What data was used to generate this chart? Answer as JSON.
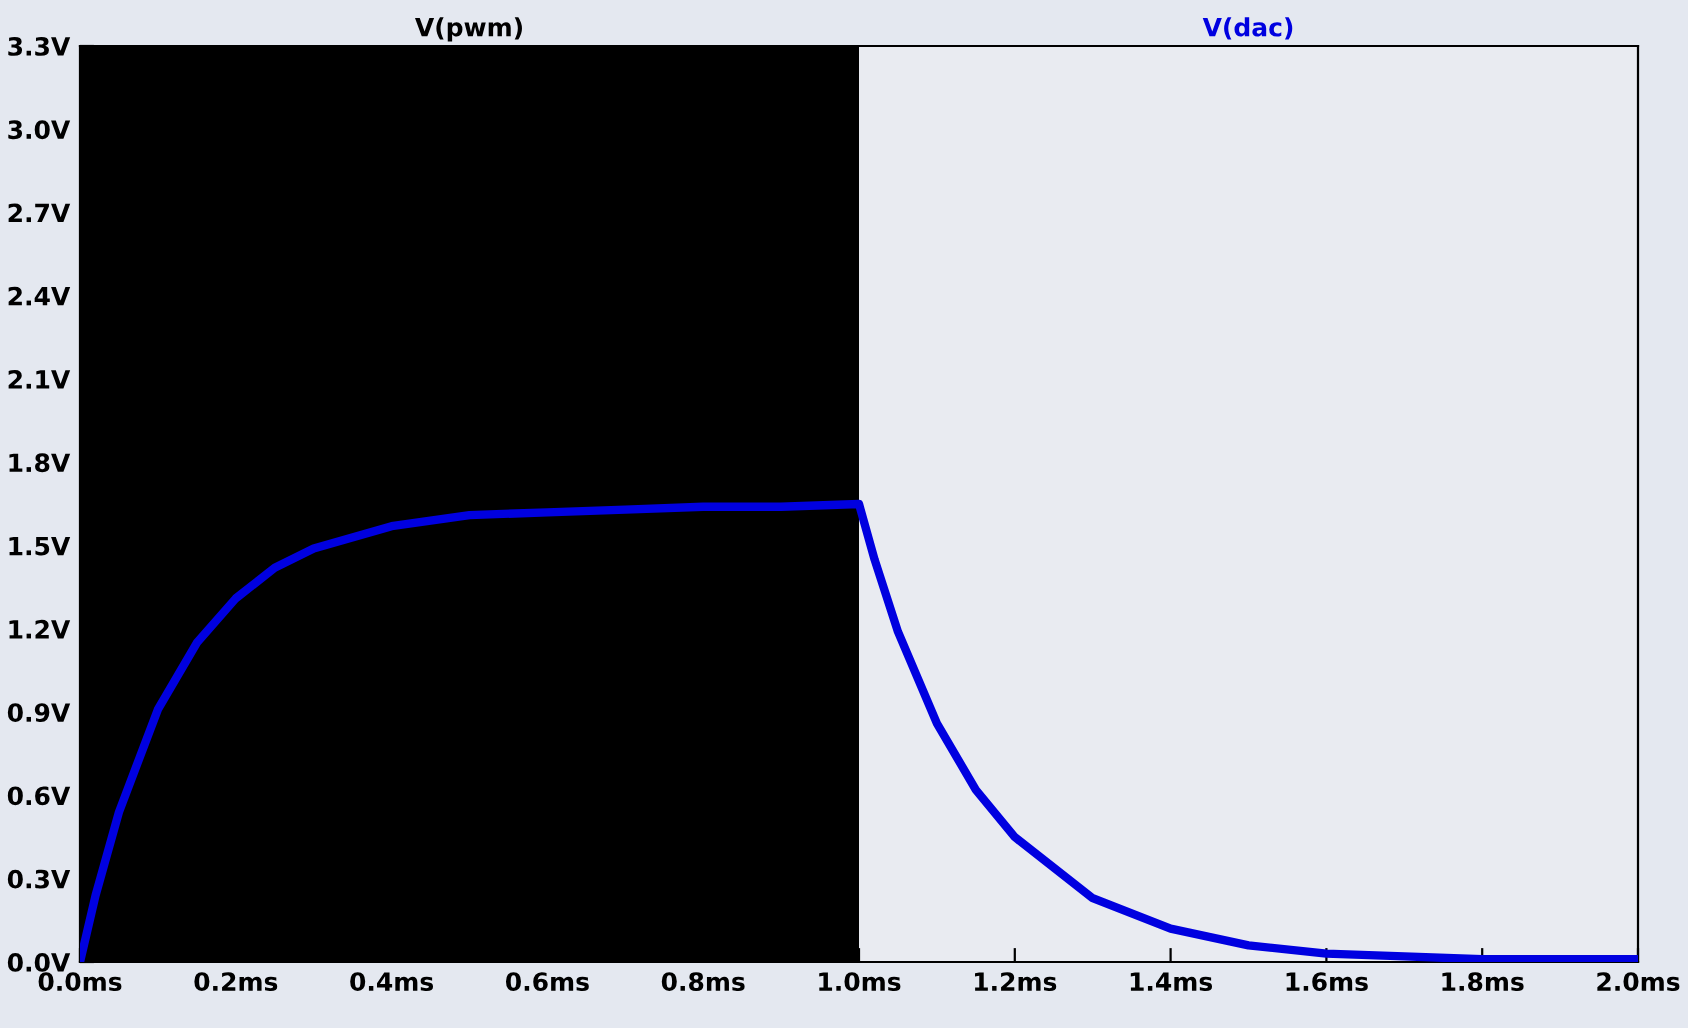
{
  "chart_data": {
    "type": "line",
    "legend": "top",
    "grid": false,
    "marker": "none",
    "line_style": "solid",
    "xlim": [
      0,
      2
    ],
    "ylim": [
      0,
      3.3
    ],
    "xticks": [
      {
        "value": 0,
        "label": "0.0ms"
      },
      {
        "value": 0.2,
        "label": "0.2ms"
      },
      {
        "value": 0.4,
        "label": "0.4ms"
      },
      {
        "value": 0.6,
        "label": "0.6ms"
      },
      {
        "value": 0.8,
        "label": "0.8ms"
      },
      {
        "value": 1.0,
        "label": "1.0ms"
      },
      {
        "value": 1.2,
        "label": "1.2ms"
      },
      {
        "value": 1.4,
        "label": "1.4ms"
      },
      {
        "value": 1.6,
        "label": "1.6ms"
      },
      {
        "value": 1.8,
        "label": "1.8ms"
      },
      {
        "value": 2.0,
        "label": "2.0ms"
      }
    ],
    "yticks": [
      {
        "value": 0,
        "label": "0.0V"
      },
      {
        "value": 0.3,
        "label": "0.3V"
      },
      {
        "value": 0.6,
        "label": "0.6V"
      },
      {
        "value": 0.9,
        "label": "0.9V"
      },
      {
        "value": 1.2,
        "label": "1.2V"
      },
      {
        "value": 1.5,
        "label": "1.5V"
      },
      {
        "value": 1.8,
        "label": "1.8V"
      },
      {
        "value": 2.1,
        "label": "2.1V"
      },
      {
        "value": 2.4,
        "label": "2.4V"
      },
      {
        "value": 2.7,
        "label": "2.7V"
      },
      {
        "value": 3.0,
        "label": "3.0V"
      },
      {
        "value": 3.3,
        "label": "3.3V"
      }
    ],
    "series": [
      {
        "name": "V(pwm)",
        "type": "area",
        "color": "#000000",
        "x": [
          0,
          1,
          1,
          2
        ],
        "values": [
          3.3,
          3.3,
          0,
          0
        ]
      },
      {
        "name": "V(dac)",
        "color": "#0000e0",
        "x": [
          0,
          0.02,
          0.05,
          0.1,
          0.15,
          0.2,
          0.25,
          0.3,
          0.4,
          0.5,
          0.6,
          0.7,
          0.8,
          0.9,
          1.0,
          1.02,
          1.05,
          1.1,
          1.15,
          1.2,
          1.3,
          1.4,
          1.5,
          1.6,
          1.7,
          1.8,
          1.9,
          2.0
        ],
        "values": [
          0,
          0.24,
          0.54,
          0.91,
          1.15,
          1.31,
          1.42,
          1.49,
          1.57,
          1.61,
          1.62,
          1.63,
          1.64,
          1.64,
          1.65,
          1.45,
          1.19,
          0.86,
          0.62,
          0.45,
          0.23,
          0.12,
          0.06,
          0.03,
          0.02,
          0.01,
          0.01,
          0.01
        ]
      }
    ]
  }
}
